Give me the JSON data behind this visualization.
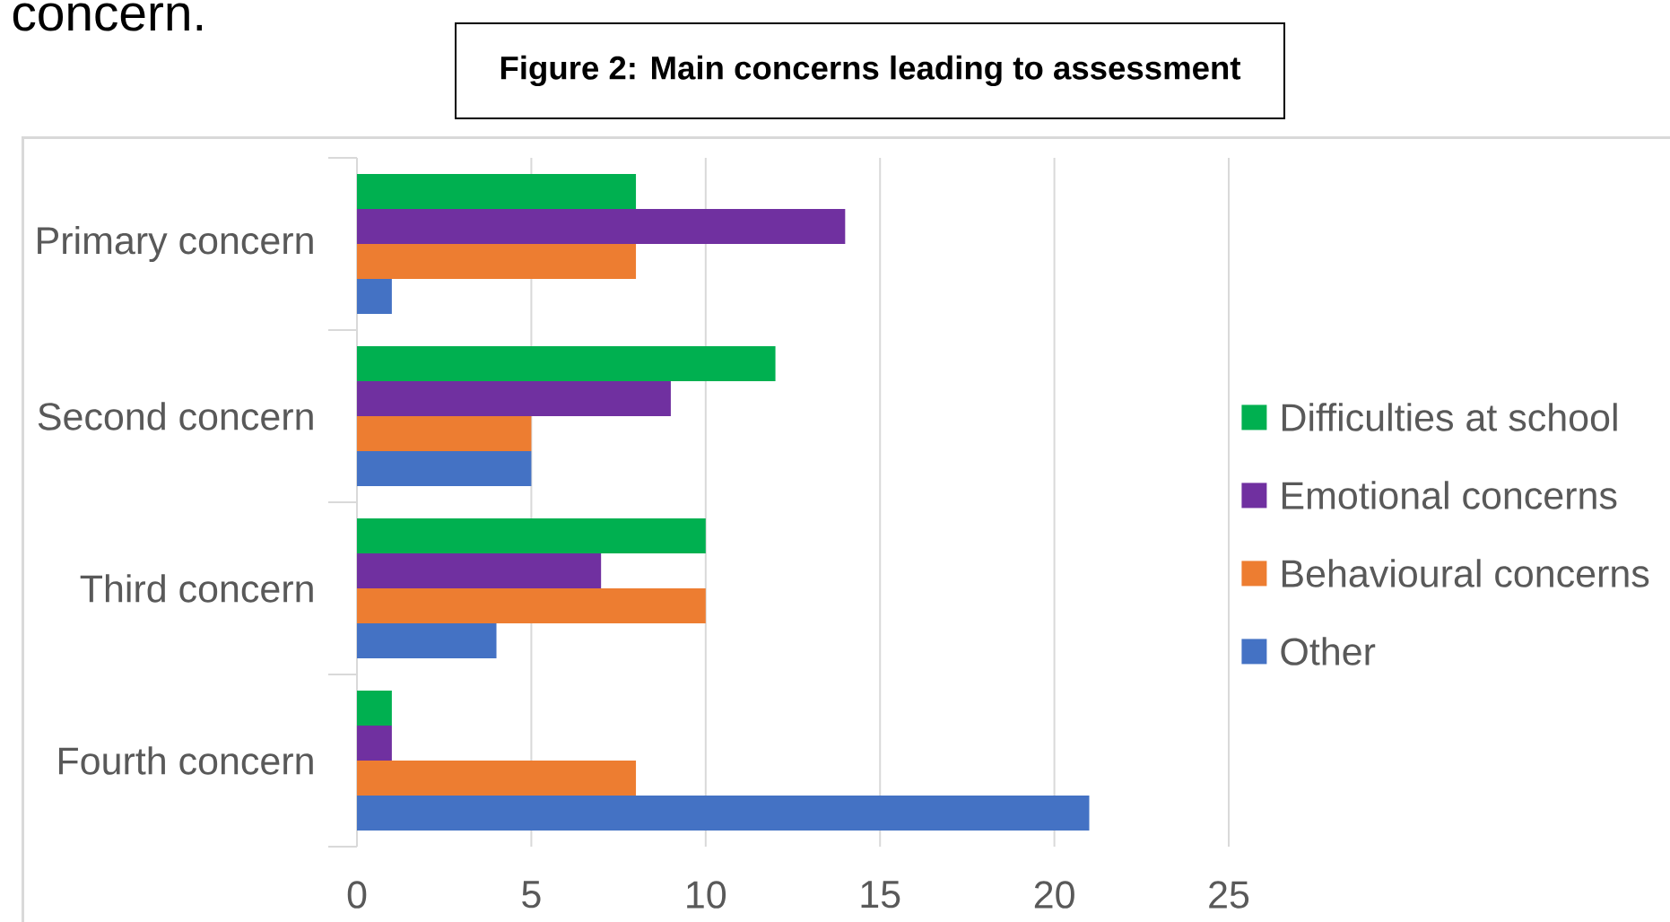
{
  "chart_data": {
    "type": "bar",
    "orientation": "horizontal",
    "title": "Figure 2: Main concerns leading to assessment",
    "annotations": [
      "concern."
    ],
    "categories": [
      "Primary concern",
      "Second concern",
      "Third concern",
      "Fourth concern"
    ],
    "series": [
      {
        "name": "Difficulties at school",
        "color": "#00b050",
        "values": [
          8,
          12,
          10,
          1
        ]
      },
      {
        "name": "Emotional concerns",
        "color": "#7030a0",
        "values": [
          14,
          9,
          7,
          1
        ]
      },
      {
        "name": "Behavioural concerns",
        "color": "#ed7d31",
        "values": [
          8,
          5,
          10,
          8
        ]
      },
      {
        "name": "Other",
        "color": "#4472c4",
        "values": [
          1,
          5,
          4,
          21
        ]
      }
    ],
    "xlim": [
      0,
      25
    ],
    "xticks": [
      0,
      5,
      10,
      15,
      20,
      25
    ],
    "grid": "x",
    "legend": "right"
  }
}
